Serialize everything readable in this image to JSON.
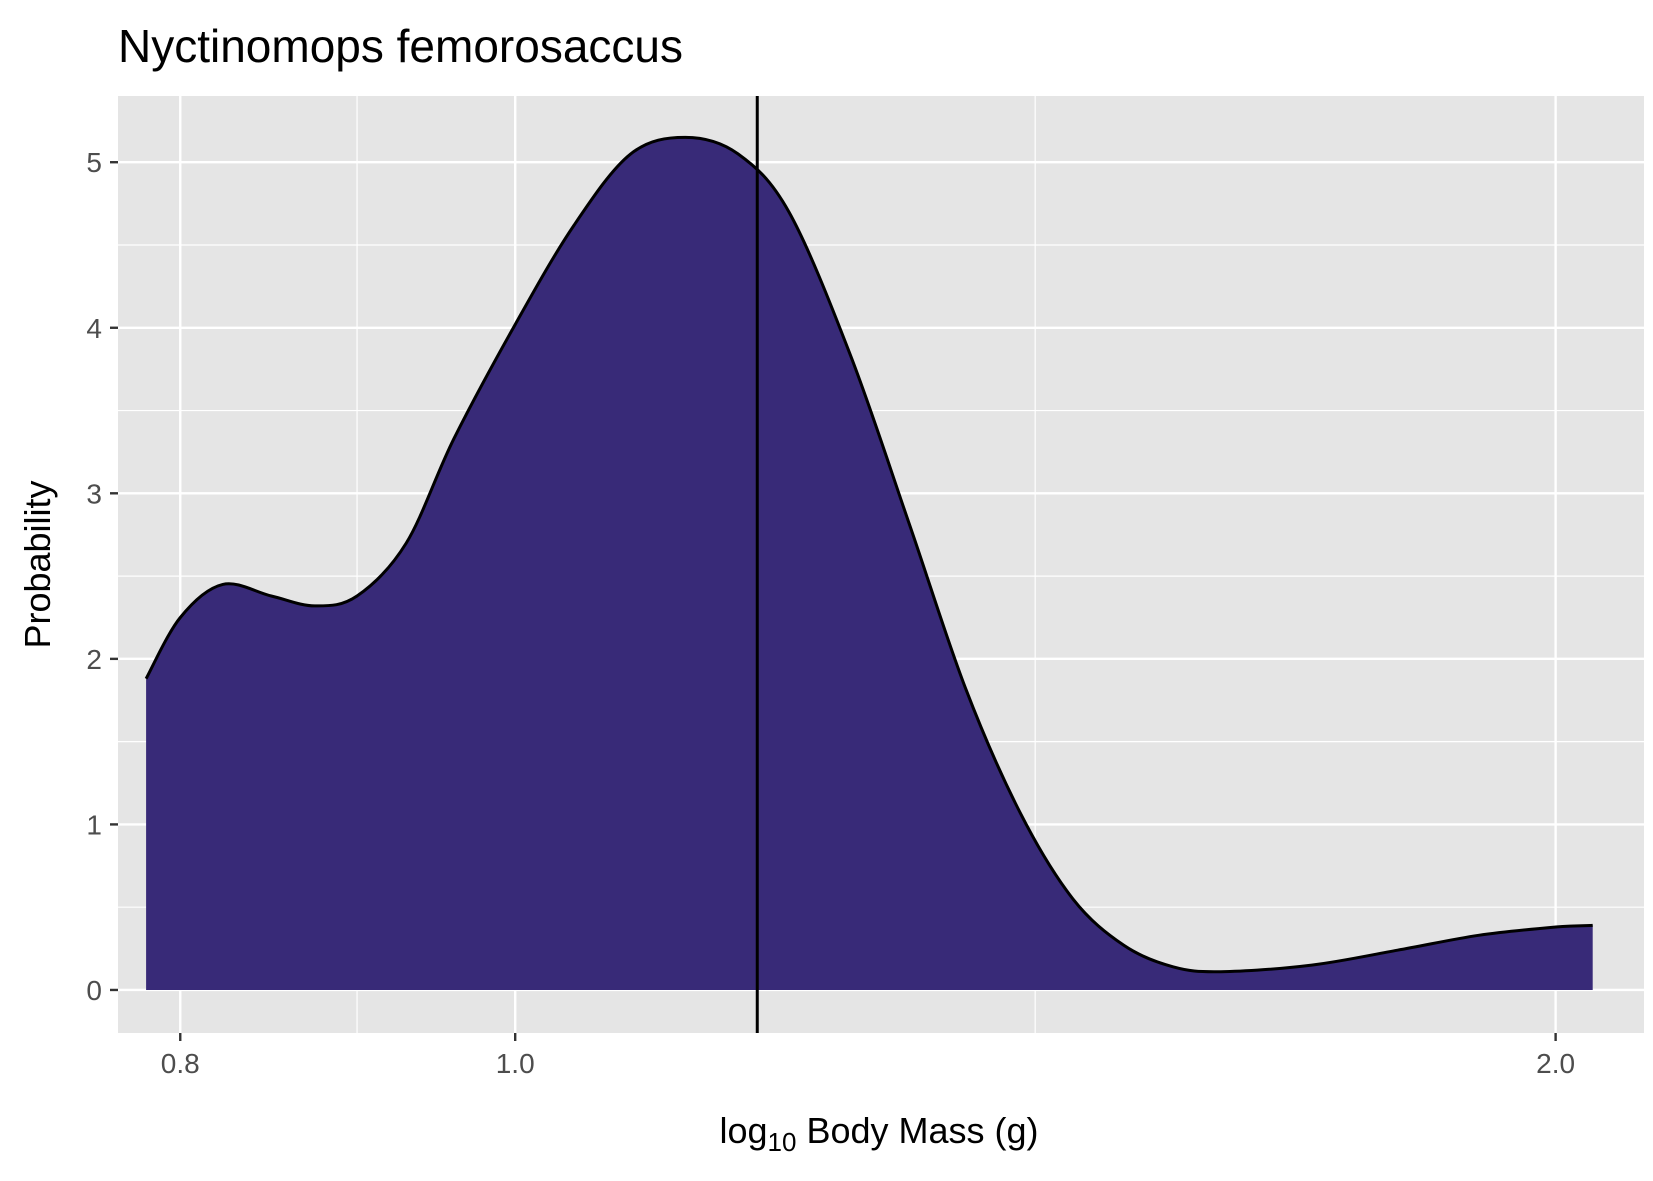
{
  "chart_data": {
    "type": "area",
    "title": "Nyctinomops femorosaccus",
    "xlabel": {
      "prefix": "log",
      "subscript": "10",
      "rest": " Body Mass ",
      "unit": "(g)"
    },
    "ylabel": "Probability",
    "x_scale": "log10",
    "xlim": [
      0.7675,
      2.1213
    ],
    "ylim": [
      -0.26,
      5.4
    ],
    "x_ticks": [
      {
        "value": 0.8,
        "label": "0.8"
      },
      {
        "value": 1.0,
        "label": "1.0"
      },
      {
        "value": 2.0,
        "label": "2.0"
      }
    ],
    "x_minor_ticks": [
      0.9,
      1.414
    ],
    "y_ticks": [
      {
        "value": 0,
        "label": "0"
      },
      {
        "value": 1,
        "label": "1"
      },
      {
        "value": 2,
        "label": "2"
      },
      {
        "value": 3,
        "label": "3"
      },
      {
        "value": 4,
        "label": "4"
      },
      {
        "value": 5,
        "label": "5"
      }
    ],
    "y_minor_ticks": [
      0.5,
      1.5,
      2.5,
      3.5,
      4.5
    ],
    "grid": true,
    "fill_color": "#382a78",
    "line_color": "#000000",
    "panel_color": "#e5e5e5",
    "grid_color": "#ffffff",
    "reference_line_x": 1.175,
    "series": [
      {
        "x": [
          0.782,
          0.8,
          0.823,
          0.85,
          0.875,
          0.9,
          0.93,
          0.96,
          1.0,
          1.04,
          1.08,
          1.12,
          1.16,
          1.2,
          1.25,
          1.3,
          1.35,
          1.4,
          1.45,
          1.5,
          1.55,
          1.6,
          1.7,
          1.8,
          1.9,
          2.0,
          2.05
        ],
        "y": [
          1.88,
          2.25,
          2.45,
          2.38,
          2.32,
          2.38,
          2.7,
          3.33,
          4.02,
          4.62,
          5.05,
          5.15,
          5.05,
          4.7,
          3.84,
          2.82,
          1.82,
          1.07,
          0.55,
          0.27,
          0.14,
          0.11,
          0.15,
          0.24,
          0.33,
          0.38,
          0.39
        ]
      }
    ]
  }
}
